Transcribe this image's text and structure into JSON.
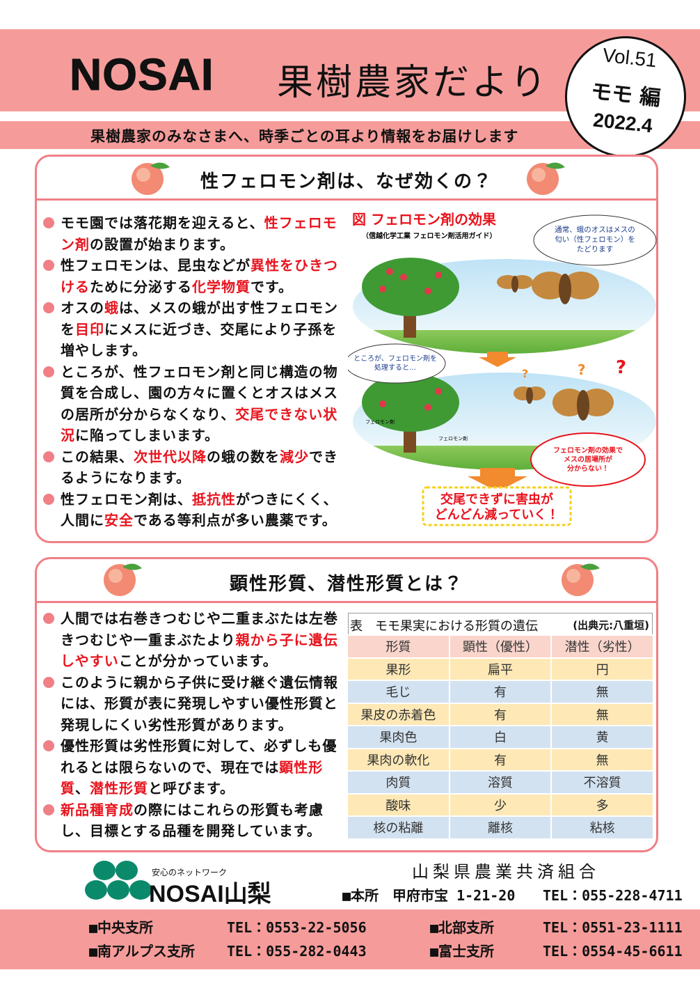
{
  "header": {
    "brand": "NOSAI",
    "title": "果樹農家だより",
    "volume": "Vol.51",
    "edition": "モモ 編",
    "date": "2022.4",
    "tagline": "果樹農家のみなさまへ、時季ごとの耳より情報をお届けします"
  },
  "section1": {
    "heading": "性フェロモン剤は、なぜ効くの？",
    "bullets": [
      [
        {
          "text": "モモ園では落花期を迎えると、"
        },
        {
          "text": "性フェロモン剤",
          "highlight": true
        },
        {
          "text": "の設置が始まります。"
        }
      ],
      [
        {
          "text": "性フェロモンは、昆虫などが"
        },
        {
          "text": "異性をひきつける",
          "highlight": true
        },
        {
          "text": "ために分泌する"
        },
        {
          "text": "化学物質",
          "highlight": true
        },
        {
          "text": "です。"
        }
      ],
      [
        {
          "text": "オスの"
        },
        {
          "text": "蛾",
          "highlight": true
        },
        {
          "text": "は、メスの蛾が出す性フェロモンを"
        },
        {
          "text": "目印",
          "highlight": true
        },
        {
          "text": "にメスに近づき、交尾により子孫を増やします。"
        }
      ],
      [
        {
          "text": "ところが、性フェロモン剤と同じ構造の物質を合成し、園の方々に置くとオスはメスの居所が分からなくなり、"
        },
        {
          "text": "交尾できない状況",
          "highlight": true
        },
        {
          "text": "に陥ってしまいます。"
        }
      ],
      [
        {
          "text": "この結果、"
        },
        {
          "text": "次世代以降",
          "highlight": true
        },
        {
          "text": "の蛾の数を"
        },
        {
          "text": "減少",
          "highlight": true
        },
        {
          "text": "できるようになります。"
        }
      ],
      [
        {
          "text": "性フェロモン剤は、"
        },
        {
          "text": "抵抗性",
          "highlight": true
        },
        {
          "text": "がつきにくく、人間に"
        },
        {
          "text": "安全",
          "highlight": true
        },
        {
          "text": "である等利点が多い農薬です。"
        }
      ]
    ],
    "figure": {
      "title": "図 フェロモン剤の効果",
      "source": "（信越化学工業 フェロモン剤活用ガイド）",
      "bubble1": [
        "通常、蛾のオスはメスの",
        "匂い（性フェロモン）を",
        "たどります"
      ],
      "bubble2": [
        "ところが、フェロモン剤を",
        "処理すると…"
      ],
      "labels": [
        "フェロモン剤",
        "フェロモン剤"
      ],
      "bubble3": [
        "フェロモン剤の効果で",
        "メスの居場所が",
        "分からない！"
      ],
      "result": [
        "交尾できずに害虫が",
        "どんどん減っていく！"
      ]
    }
  },
  "section2": {
    "heading": "顕性形質、潜性形質とは？",
    "bullets": [
      [
        {
          "text": "人間では右巻きつむじや二重まぶたは左巻きつむじや一重まぶたより"
        },
        {
          "text": "親から子に遺伝しやすい",
          "highlight": true
        },
        {
          "text": "ことが分かっています。"
        }
      ],
      [
        {
          "text": "このように親から子供に受け継ぐ遺伝情報には、形質が表に発現しやすい優性形質と発現しにくい劣性形質があります。"
        }
      ],
      [
        {
          "text": "優性形質は劣性形質に対して、必ずしも優れるとは限らないので、現在では"
        },
        {
          "text": "顕性形質",
          "highlight": true
        },
        {
          "text": "、"
        },
        {
          "text": "潜性形質",
          "highlight": true
        },
        {
          "text": "と呼びます。"
        }
      ],
      [
        {
          "text": "新品種育成",
          "highlight": true
        },
        {
          "text": "の際にはこれらの形質も考慮し、目標とする品種を開発しています。"
        }
      ]
    ],
    "table": {
      "caption": "表　モモ果実における形質の遺伝",
      "source": "(出典元:八重垣)",
      "headers": [
        "形質",
        "顕性（優性）",
        "潜性（劣性）"
      ],
      "rows": [
        [
          "果形",
          "扁平",
          "円"
        ],
        [
          "毛じ",
          "有",
          "無"
        ],
        [
          "果皮の赤着色",
          "有",
          "無"
        ],
        [
          "果肉色",
          "白",
          "黄"
        ],
        [
          "果肉の軟化",
          "有",
          "無"
        ],
        [
          "肉質",
          "溶質",
          "不溶質"
        ],
        [
          "酸味",
          "少",
          "多"
        ],
        [
          "核の粘離",
          "離核",
          "粘核"
        ]
      ]
    }
  },
  "footer": {
    "slogan": "安心のネットワーク",
    "logo": "NOSAI山梨",
    "organization": "山梨県農業共済組合",
    "head_office": "■本所　甲府市宝 1-21-20",
    "head_office_tel": "TEL：055-228-4711",
    "branches": [
      {
        "name": "■中央支所",
        "tel": "TEL：0553-22-5056"
      },
      {
        "name": "■北部支所",
        "tel": "TEL：0551-23-1111"
      },
      {
        "name": "■南アルプス支所",
        "tel": "TEL：055-282-0443"
      },
      {
        "name": "■富士支所",
        "tel": "TEL：0554-45-6611"
      }
    ]
  }
}
